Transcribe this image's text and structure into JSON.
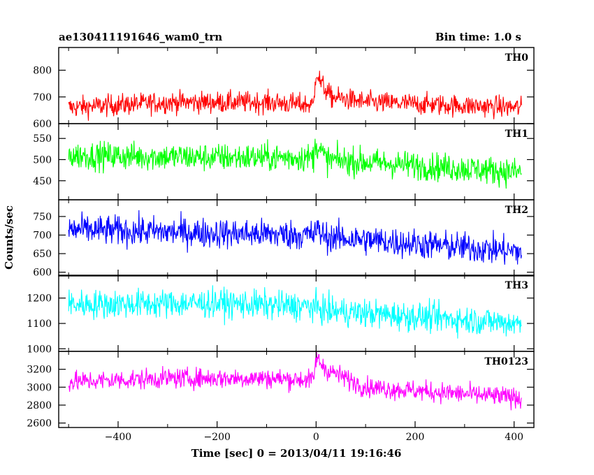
{
  "header": {
    "title": "ae130411191646_wam0_trn",
    "bin_time": "Bin time: 1.0 s"
  },
  "chart_data": {
    "type": "line",
    "title": "ae130411191646_wam0_trn",
    "xlabel": "Time [sec] 0 = 2013/04/11 19:16:46",
    "ylabel": "Counts/sec",
    "xlim": [
      -520,
      440
    ],
    "x_ticks": [
      -400,
      -200,
      0,
      200,
      400
    ],
    "x_step": 1.0,
    "x_range": [
      -500,
      415
    ],
    "panels": [
      {
        "name": "TH0",
        "color": "#ff0000",
        "ylim": [
          600,
          885
        ],
        "yticks": [
          600,
          700,
          800
        ],
        "baseline": [
          [
            -500,
            660
          ],
          [
            -300,
            680
          ],
          [
            -100,
            680
          ],
          [
            -5,
            670
          ],
          [
            0,
            800
          ],
          [
            10,
            750
          ],
          [
            30,
            700
          ],
          [
            100,
            680
          ],
          [
            415,
            660
          ]
        ],
        "noise": 34
      },
      {
        "name": "TH1",
        "color": "#00ff00",
        "ylim": [
          405,
          585
        ],
        "yticks": [
          450,
          500,
          550
        ],
        "baseline": [
          [
            -500,
            510
          ],
          [
            -200,
            505
          ],
          [
            -5,
            505
          ],
          [
            0,
            540
          ],
          [
            20,
            500
          ],
          [
            415,
            470
          ]
        ],
        "noise": 28
      },
      {
        "name": "TH2",
        "color": "#0000ff",
        "ylim": [
          590,
          795
        ],
        "yticks": [
          600,
          650,
          700,
          750
        ],
        "baseline": [
          [
            -500,
            715
          ],
          [
            -200,
            705
          ],
          [
            -5,
            700
          ],
          [
            0,
            715
          ],
          [
            20,
            695
          ],
          [
            415,
            655
          ]
        ],
        "noise": 34
      },
      {
        "name": "TH3",
        "color": "#00ffff",
        "ylim": [
          990,
          1290
        ],
        "yticks": [
          1000,
          1100,
          1200
        ],
        "baseline": [
          [
            -500,
            1175
          ],
          [
            -200,
            1180
          ],
          [
            -5,
            1165
          ],
          [
            20,
            1150
          ],
          [
            415,
            1100
          ]
        ],
        "noise": 48
      },
      {
        "name": "TH0123",
        "color": "#ff00ff",
        "ylim": [
          2550,
          3400
        ],
        "yticks": [
          2600,
          2800,
          3000,
          3200
        ],
        "baseline": [
          [
            -500,
            3060
          ],
          [
            -300,
            3100
          ],
          [
            -100,
            3100
          ],
          [
            -5,
            3080
          ],
          [
            0,
            3330
          ],
          [
            20,
            3200
          ],
          [
            100,
            3000
          ],
          [
            415,
            2880
          ]
        ],
        "noise": 95
      }
    ]
  }
}
